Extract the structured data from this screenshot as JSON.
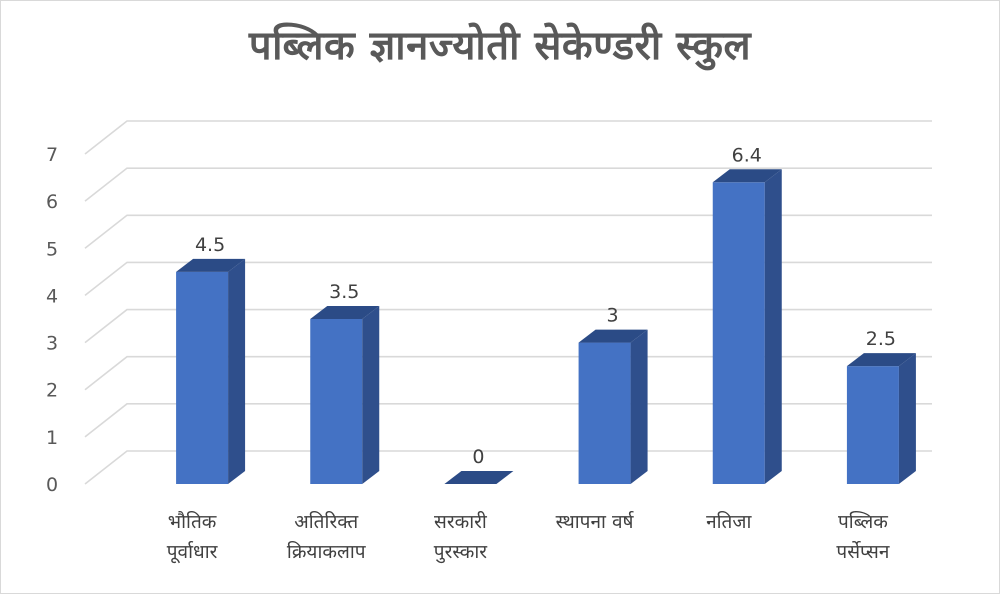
{
  "chart_data": {
    "type": "bar",
    "title": "पब्लिक ज्ञानज्योती सेकेण्डरी स्कुल",
    "categories": [
      [
        "भौतिक",
        "पूर्वाधार"
      ],
      [
        "अतिरिक्त",
        "क्रियाकलाप"
      ],
      [
        "सरकारी",
        "पुरस्कार"
      ],
      [
        "स्थापना वर्ष"
      ],
      [
        "नतिजा"
      ],
      [
        "पब्लिक",
        "पर्सेप्सन"
      ]
    ],
    "values": [
      4.5,
      3.5,
      0,
      3,
      6.4,
      2.5
    ],
    "data_labels": [
      "4.5",
      "3.5",
      "0",
      "3",
      "6.4",
      "2.5"
    ],
    "yticks": [
      "0",
      "1",
      "2",
      "3",
      "4",
      "5",
      "6",
      "7"
    ],
    "ylim": [
      0,
      7
    ],
    "xlabel": "",
    "ylabel": "",
    "grid": true,
    "legend": "none",
    "style_3d": true,
    "colors": {
      "bar_front": "#4472c4",
      "bar_side": "#2f4f8c",
      "bar_top": "#2b4b86",
      "grid": "#d9d9d9",
      "text": "#595959"
    }
  }
}
